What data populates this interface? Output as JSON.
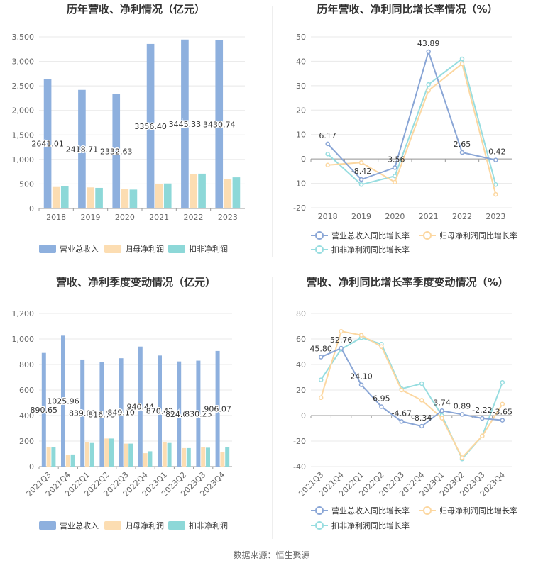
{
  "source": "数据来源：恒生聚源",
  "colors": {
    "revenue": "#8eb0de",
    "net_profit": "#fcddb2",
    "deducted": "#8dd8d8",
    "revenue_line": "#8aa6d6",
    "net_profit_line": "#fcd7a0",
    "deducted_line": "#97dde0",
    "grid": "#e8e8e8",
    "axis": "#999999",
    "text": "#666666"
  },
  "chart_data": [
    {
      "id": "annual_values",
      "type": "bar",
      "title": "历年营收、净利情况（亿元）",
      "categories": [
        "2018",
        "2019",
        "2020",
        "2021",
        "2022",
        "2023"
      ],
      "ylim": [
        0,
        3500
      ],
      "yticks": [
        0,
        500,
        1000,
        1500,
        2000,
        2500,
        3000,
        3500
      ],
      "ytick_labels": [
        "0",
        "500",
        "1,000",
        "1,500",
        "2,000",
        "2,500",
        "3,000",
        "3,500"
      ],
      "grid": true,
      "legend": "bottom",
      "series": [
        {
          "name": "营业总收入",
          "color_key": "revenue",
          "values": [
            2641.01,
            2418.71,
            2332.63,
            3356.4,
            3445.33,
            3430.74
          ],
          "labels": [
            "2641.01",
            "2418.71",
            "2332.63",
            "3356.40",
            "3445.33",
            "3430.74"
          ]
        },
        {
          "name": "归母净利润",
          "color_key": "net_profit",
          "values": [
            438,
            430,
            390,
            505,
            700,
            595
          ]
        },
        {
          "name": "扣非净利润",
          "color_key": "deducted",
          "values": [
            458,
            420,
            385,
            510,
            710,
            635
          ]
        }
      ]
    },
    {
      "id": "annual_growth",
      "type": "line",
      "title": "历年营收、净利同比增长率情况（%）",
      "categories": [
        "2018",
        "2019",
        "2020",
        "2021",
        "2022",
        "2023"
      ],
      "ylim": [
        -20,
        50
      ],
      "yticks": [
        -20,
        -10,
        0,
        10,
        20,
        30,
        40,
        50
      ],
      "ytick_labels": [
        "-20",
        "-10",
        "0",
        "10",
        "20",
        "30",
        "40",
        "50"
      ],
      "grid": true,
      "legend": "bottom",
      "series": [
        {
          "name": "营业总收入同比增长率",
          "color_key": "revenue_line",
          "values": [
            6.17,
            -8.42,
            -3.56,
            43.89,
            2.65,
            -0.42
          ],
          "labels": [
            "6.17",
            "-8.42",
            "-3.56",
            "43.89",
            "2.65",
            "-0.42"
          ]
        },
        {
          "name": "归母净利润同比增长率",
          "color_key": "net_profit_line",
          "values": [
            -2.5,
            -1.5,
            -9.5,
            28.0,
            39.0,
            -14.5
          ]
        },
        {
          "name": "扣非净利润同比增长率",
          "color_key": "deducted_line",
          "values": [
            2.0,
            -10.5,
            -7.0,
            30.5,
            41.0,
            -10.5
          ]
        }
      ]
    },
    {
      "id": "quarterly_values",
      "type": "bar",
      "title": "营收、净利季度变动情况（亿元）",
      "categories": [
        "2021Q3",
        "2021Q4",
        "2022Q1",
        "2022Q2",
        "2022Q3",
        "2022Q4",
        "2023Q1",
        "2023Q2",
        "2023Q3",
        "2023Q4"
      ],
      "ylim": [
        0,
        1200
      ],
      "yticks": [
        0,
        200,
        400,
        600,
        800,
        1000,
        1200
      ],
      "ytick_labels": [
        "0",
        "200",
        "400",
        "600",
        "800",
        "1,000",
        "1,200"
      ],
      "grid": true,
      "legend": "bottom",
      "series": [
        {
          "name": "营业总收入",
          "color_key": "revenue",
          "values": [
            890.65,
            1025.96,
            839.09,
            816.73,
            849.1,
            940.44,
            870.42,
            824.08,
            830.23,
            906.07
          ],
          "labels": [
            "890.65",
            "1025.96",
            "839.09",
            "816.73",
            "849.10",
            "940.44",
            "870.42",
            "824.08",
            "830.23",
            "906.07"
          ]
        },
        {
          "name": "归母净利润",
          "color_key": "net_profit",
          "values": [
            150,
            90,
            190,
            220,
            180,
            105,
            190,
            145,
            150,
            115
          ]
        },
        {
          "name": "扣非净利润",
          "color_key": "deducted",
          "values": [
            150,
            95,
            185,
            220,
            180,
            120,
            185,
            145,
            148,
            152
          ]
        }
      ]
    },
    {
      "id": "quarterly_growth",
      "type": "line",
      "title": "营收、净利同比增长率季度变动情况（%）",
      "categories": [
        "2021Q3",
        "2021Q4",
        "2022Q1",
        "2022Q2",
        "2022Q3",
        "2022Q4",
        "2023Q1",
        "2023Q2",
        "2023Q3",
        "2023Q4"
      ],
      "ylim": [
        -40,
        80
      ],
      "yticks": [
        -40,
        -20,
        0,
        20,
        40,
        60,
        80
      ],
      "ytick_labels": [
        "-40",
        "-20",
        "0",
        "20",
        "40",
        "60",
        "80"
      ],
      "grid": true,
      "legend": "bottom",
      "series": [
        {
          "name": "营业总收入同比增长率",
          "color_key": "revenue_line",
          "values": [
            45.8,
            52.76,
            24.1,
            6.95,
            -4.67,
            -8.34,
            3.74,
            0.89,
            -2.22,
            -3.65
          ],
          "labels": [
            "45.80",
            "52.76",
            "24.10",
            "6.95",
            "-4.67",
            "-8.34",
            "3.74",
            "0.89",
            "-2.22",
            "-3.65"
          ]
        },
        {
          "name": "归母净利润同比增长率",
          "color_key": "net_profit_line",
          "values": [
            14,
            66,
            63,
            54,
            20,
            12,
            -2,
            -33,
            -16,
            9
          ]
        },
        {
          "name": "扣非净利润同比增长率",
          "color_key": "deducted_line",
          "values": [
            28,
            52,
            61,
            56,
            21,
            25,
            0,
            -34,
            -16,
            26
          ]
        }
      ]
    }
  ]
}
